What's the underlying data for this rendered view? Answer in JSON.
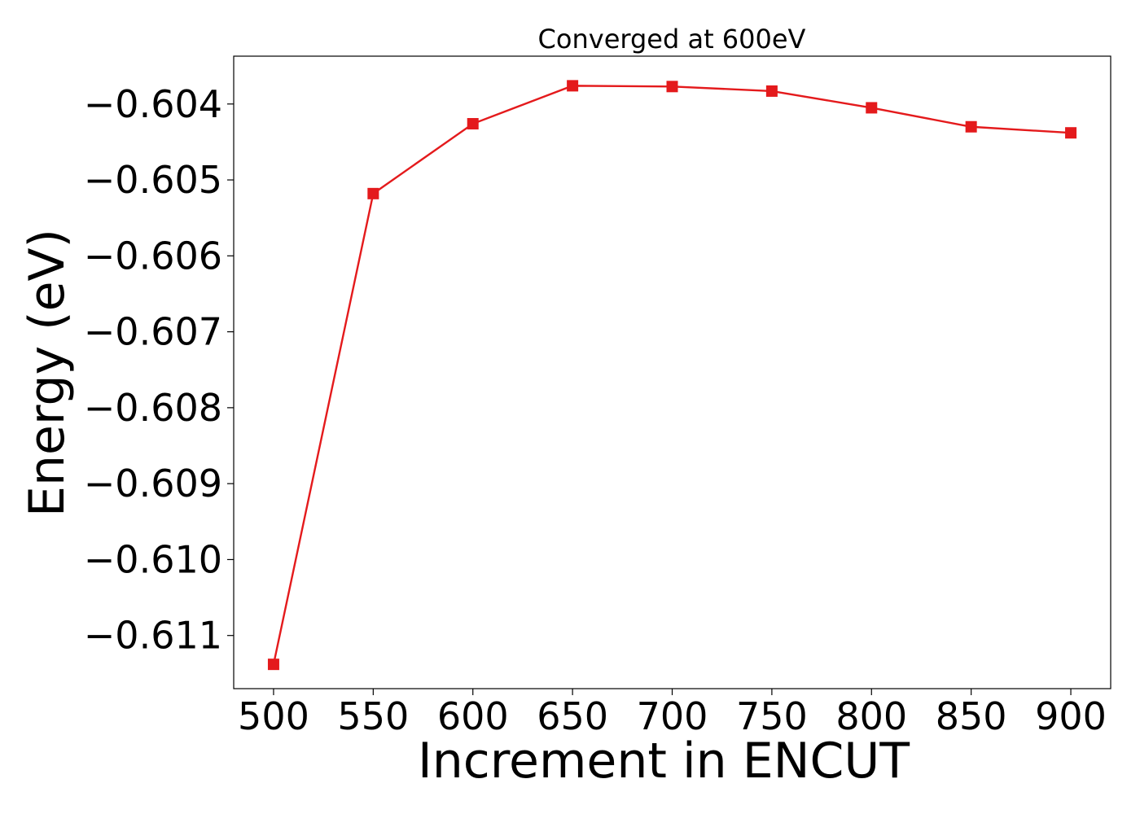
{
  "chart_data": {
    "type": "line",
    "title": "Converged at 600eV",
    "xlabel": "Increment in ENCUT",
    "ylabel": "Energy (eV)",
    "x": [
      500,
      550,
      600,
      650,
      700,
      750,
      800,
      850,
      900
    ],
    "series": [
      {
        "values": [
          -0.61138,
          -0.60518,
          -0.60426,
          -0.60376,
          -0.60377,
          -0.60383,
          -0.60405,
          -0.6043,
          -0.60438
        ],
        "color": "#e41a1c",
        "marker": "square"
      }
    ],
    "xlim": [
      480,
      920
    ],
    "ylim": [
      -0.6117,
      -0.60337
    ],
    "xticks": [
      500,
      550,
      600,
      650,
      700,
      750,
      800,
      850,
      900
    ],
    "yticks": [
      -0.611,
      -0.61,
      -0.609,
      -0.608,
      -0.607,
      -0.606,
      -0.605,
      -0.604
    ],
    "ytick_labels": [
      "−0.611",
      "−0.610",
      "−0.609",
      "−0.608",
      "−0.607",
      "−0.606",
      "−0.605",
      "−0.604"
    ],
    "grid": false,
    "legend": "none"
  }
}
